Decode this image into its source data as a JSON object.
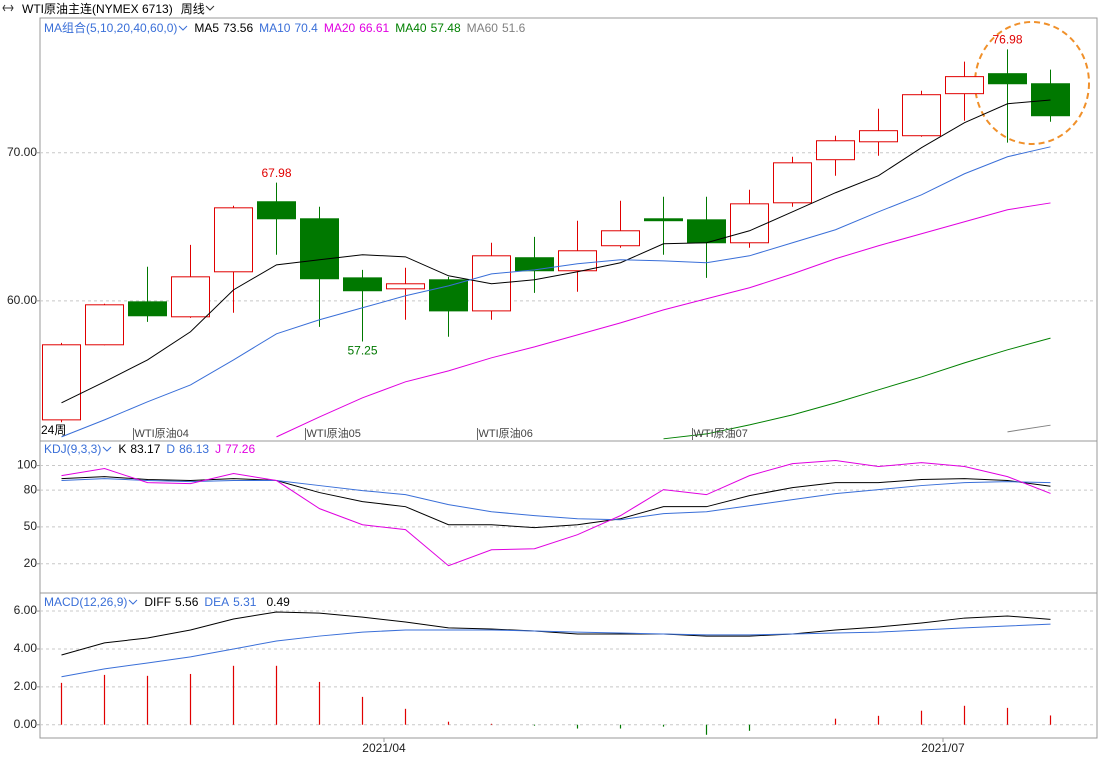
{
  "chart_data": [
    {
      "type": "candlestick",
      "title": "WTI原油主连(NYMEX 6713)",
      "period": "周线",
      "indicator": "MA组合(5,10,20,40,60,0)",
      "span_label": "24周",
      "open": [
        51.96,
        57.03,
        59.93,
        58.92,
        61.96,
        66.69,
        65.54,
        61.55,
        60.81,
        61.42,
        59.32,
        62.91,
        62.03,
        63.72,
        65.54,
        65.47,
        63.92,
        66.62,
        69.53,
        70.74,
        71.15,
        73.99,
        75.34,
        74.66
      ],
      "high": [
        57.16,
        59.8,
        62.3,
        63.78,
        66.42,
        67.98,
        66.35,
        62.09,
        62.23,
        61.62,
        63.92,
        64.32,
        65.41,
        66.76,
        67.03,
        67.03,
        67.5,
        69.73,
        71.15,
        72.97,
        74.19,
        76.15,
        76.98,
        75.61
      ],
      "low": [
        51.8,
        57.0,
        58.58,
        58.85,
        59.19,
        63.11,
        58.24,
        57.25,
        58.72,
        57.57,
        58.72,
        60.54,
        60.61,
        63.58,
        63.11,
        61.55,
        63.58,
        66.35,
        68.45,
        69.8,
        71.08,
        72.16,
        70.68,
        72.09
      ],
      "close": [
        57.03,
        59.73,
        58.99,
        61.62,
        66.28,
        65.54,
        61.49,
        60.68,
        61.15,
        59.32,
        63.04,
        62.03,
        63.38,
        64.73,
        65.41,
        63.92,
        66.55,
        69.32,
        70.81,
        71.49,
        73.92,
        75.14,
        74.66,
        72.5
      ],
      "up_color": "#e00000",
      "down_color": "#007800",
      "series": [
        {
          "name": "MA5",
          "color": "#000000",
          "latest": 73.56,
          "values": [
            53.11,
            54.53,
            56.01,
            57.91,
            60.74,
            62.43,
            62.77,
            63.11,
            62.97,
            61.69,
            61.15,
            61.42,
            61.96,
            62.57,
            63.85,
            63.92,
            64.73,
            66.01,
            67.3,
            68.45,
            70.34,
            72.03,
            73.31,
            73.56
          ]
        },
        {
          "name": "MA10",
          "color": "#3a6fd8",
          "latest": 70.4,
          "values": [
            50.81,
            51.96,
            53.18,
            54.32,
            56.01,
            57.77,
            58.72,
            59.53,
            60.34,
            61.01,
            61.82,
            62.09,
            62.5,
            62.77,
            62.7,
            62.57,
            63.04,
            63.92,
            64.8,
            66.01,
            67.16,
            68.58,
            69.73,
            70.4
          ]
        },
        {
          "name": "MA20",
          "color": "#e000e0",
          "latest": 66.61,
          "values": [
            null,
            null,
            null,
            null,
            null,
            50.81,
            52.16,
            53.45,
            54.53,
            55.27,
            56.15,
            56.89,
            57.7,
            58.51,
            59.39,
            60.14,
            60.88,
            61.82,
            62.84,
            63.72,
            64.53,
            65.34,
            66.15,
            66.61
          ]
        },
        {
          "name": "MA40",
          "color": "#008000",
          "latest": 57.48,
          "values": [
            null,
            null,
            null,
            null,
            null,
            null,
            null,
            null,
            null,
            null,
            null,
            null,
            null,
            null,
            50.68,
            51.01,
            51.62,
            52.3,
            53.11,
            53.99,
            54.86,
            55.81,
            56.69,
            57.48
          ]
        },
        {
          "name": "MA60",
          "color": "#808080",
          "latest": 51.6,
          "values": [
            null,
            null,
            null,
            null,
            null,
            null,
            null,
            null,
            null,
            null,
            null,
            null,
            null,
            null,
            null,
            null,
            null,
            null,
            null,
            null,
            null,
            null,
            51.15,
            51.6
          ]
        }
      ],
      "annotations": [
        {
          "value": 67.98,
          "index": 5,
          "color": "#e00000"
        },
        {
          "value": 57.25,
          "index": 7,
          "color": "#007800"
        },
        {
          "value": 76.98,
          "index": 22,
          "color": "#e00000"
        }
      ],
      "contract_marks": [
        {
          "label": "WTI原油04",
          "index": 2
        },
        {
          "label": "WTI原油05",
          "index": 6
        },
        {
          "label": "WTI原油06",
          "index": 10
        },
        {
          "label": "WTI原油07",
          "index": 15
        }
      ],
      "ylim": [
        50.6,
        79.1
      ],
      "yticks": [
        {
          "value": 60,
          "label": "60.00"
        },
        {
          "value": 70,
          "label": "70.00"
        }
      ],
      "grid": true
    },
    {
      "type": "line",
      "title": "KDJ(9,3,3)",
      "series": [
        {
          "name": "K",
          "color": "#000000",
          "latest": 83.17,
          "values": [
            89.4,
            91.0,
            88.6,
            87.8,
            89.4,
            87.8,
            78.0,
            70.6,
            66.5,
            51.8,
            51.8,
            49.4,
            51.8,
            56.7,
            66.5,
            66.5,
            75.5,
            82.0,
            86.1,
            86.1,
            88.6,
            89.4,
            87.8,
            83.17
          ]
        },
        {
          "name": "D",
          "color": "#3a6fd8",
          "latest": 86.13,
          "values": [
            87.8,
            89.4,
            87.8,
            86.9,
            87.8,
            87.8,
            83.7,
            79.6,
            76.3,
            68.2,
            62.4,
            59.2,
            56.7,
            55.9,
            60.8,
            62.4,
            67.3,
            72.2,
            77.1,
            80.4,
            83.7,
            86.1,
            86.9,
            86.13
          ]
        },
        {
          "name": "J",
          "color": "#e000e0",
          "latest": 77.26,
          "values": [
            91.8,
            97.6,
            86.1,
            85.3,
            93.5,
            87.8,
            64.9,
            51.8,
            47.8,
            18.4,
            31.4,
            32.2,
            43.7,
            59.2,
            80.4,
            76.3,
            91.8,
            101.6,
            104.1,
            99.2,
            102.4,
            99.2,
            91.0,
            77.26
          ]
        }
      ],
      "ylim": [
        -3,
        120
      ],
      "yticks": [
        20,
        50,
        80,
        100
      ],
      "grid": true
    },
    {
      "type": "macd",
      "title": "MACD(12,26,9)",
      "categories": [
        null,
        null,
        null,
        null,
        null,
        null,
        null,
        "2021/04",
        null,
        null,
        null,
        null,
        null,
        null,
        null,
        null,
        null,
        null,
        null,
        null,
        "2021/07",
        null,
        null,
        null
      ],
      "series": [
        {
          "name": "DIFF",
          "color": "#000000",
          "latest": 5.56,
          "values": [
            3.68,
            4.32,
            4.58,
            5.0,
            5.58,
            5.95,
            5.89,
            5.68,
            5.42,
            5.11,
            5.05,
            4.95,
            4.79,
            4.79,
            4.79,
            4.68,
            4.68,
            4.79,
            5.0,
            5.16,
            5.37,
            5.63,
            5.74,
            5.56
          ]
        },
        {
          "name": "DEA",
          "color": "#3a6fd8",
          "latest": 5.31,
          "values": [
            2.53,
            2.95,
            3.26,
            3.58,
            4.0,
            4.42,
            4.68,
            4.89,
            5.0,
            5.0,
            5.0,
            4.95,
            4.89,
            4.84,
            4.79,
            4.74,
            4.74,
            4.79,
            4.84,
            4.89,
            5.0,
            5.11,
            5.21,
            5.31
          ]
        }
      ],
      "histogram": {
        "latest": 0.49,
        "up_color": "#e00000",
        "down_color": "#007800",
        "values": [
          2.21,
          2.63,
          2.58,
          2.68,
          3.11,
          3.11,
          2.26,
          1.47,
          0.84,
          0.16,
          0.05,
          -0.05,
          -0.2,
          -0.2,
          -0.1,
          -0.53,
          -0.32,
          0.0,
          0.32,
          0.47,
          0.74,
          1.0,
          0.89,
          0.49
        ]
      },
      "ylim": [
        -0.7,
        6.9
      ],
      "yticks": [
        {
          "value": 0,
          "label": "0.00"
        },
        {
          "value": 2,
          "label": "2.00"
        },
        {
          "value": 4,
          "label": "4.00"
        },
        {
          "value": 6,
          "label": "6.00"
        }
      ],
      "grid": true
    }
  ]
}
